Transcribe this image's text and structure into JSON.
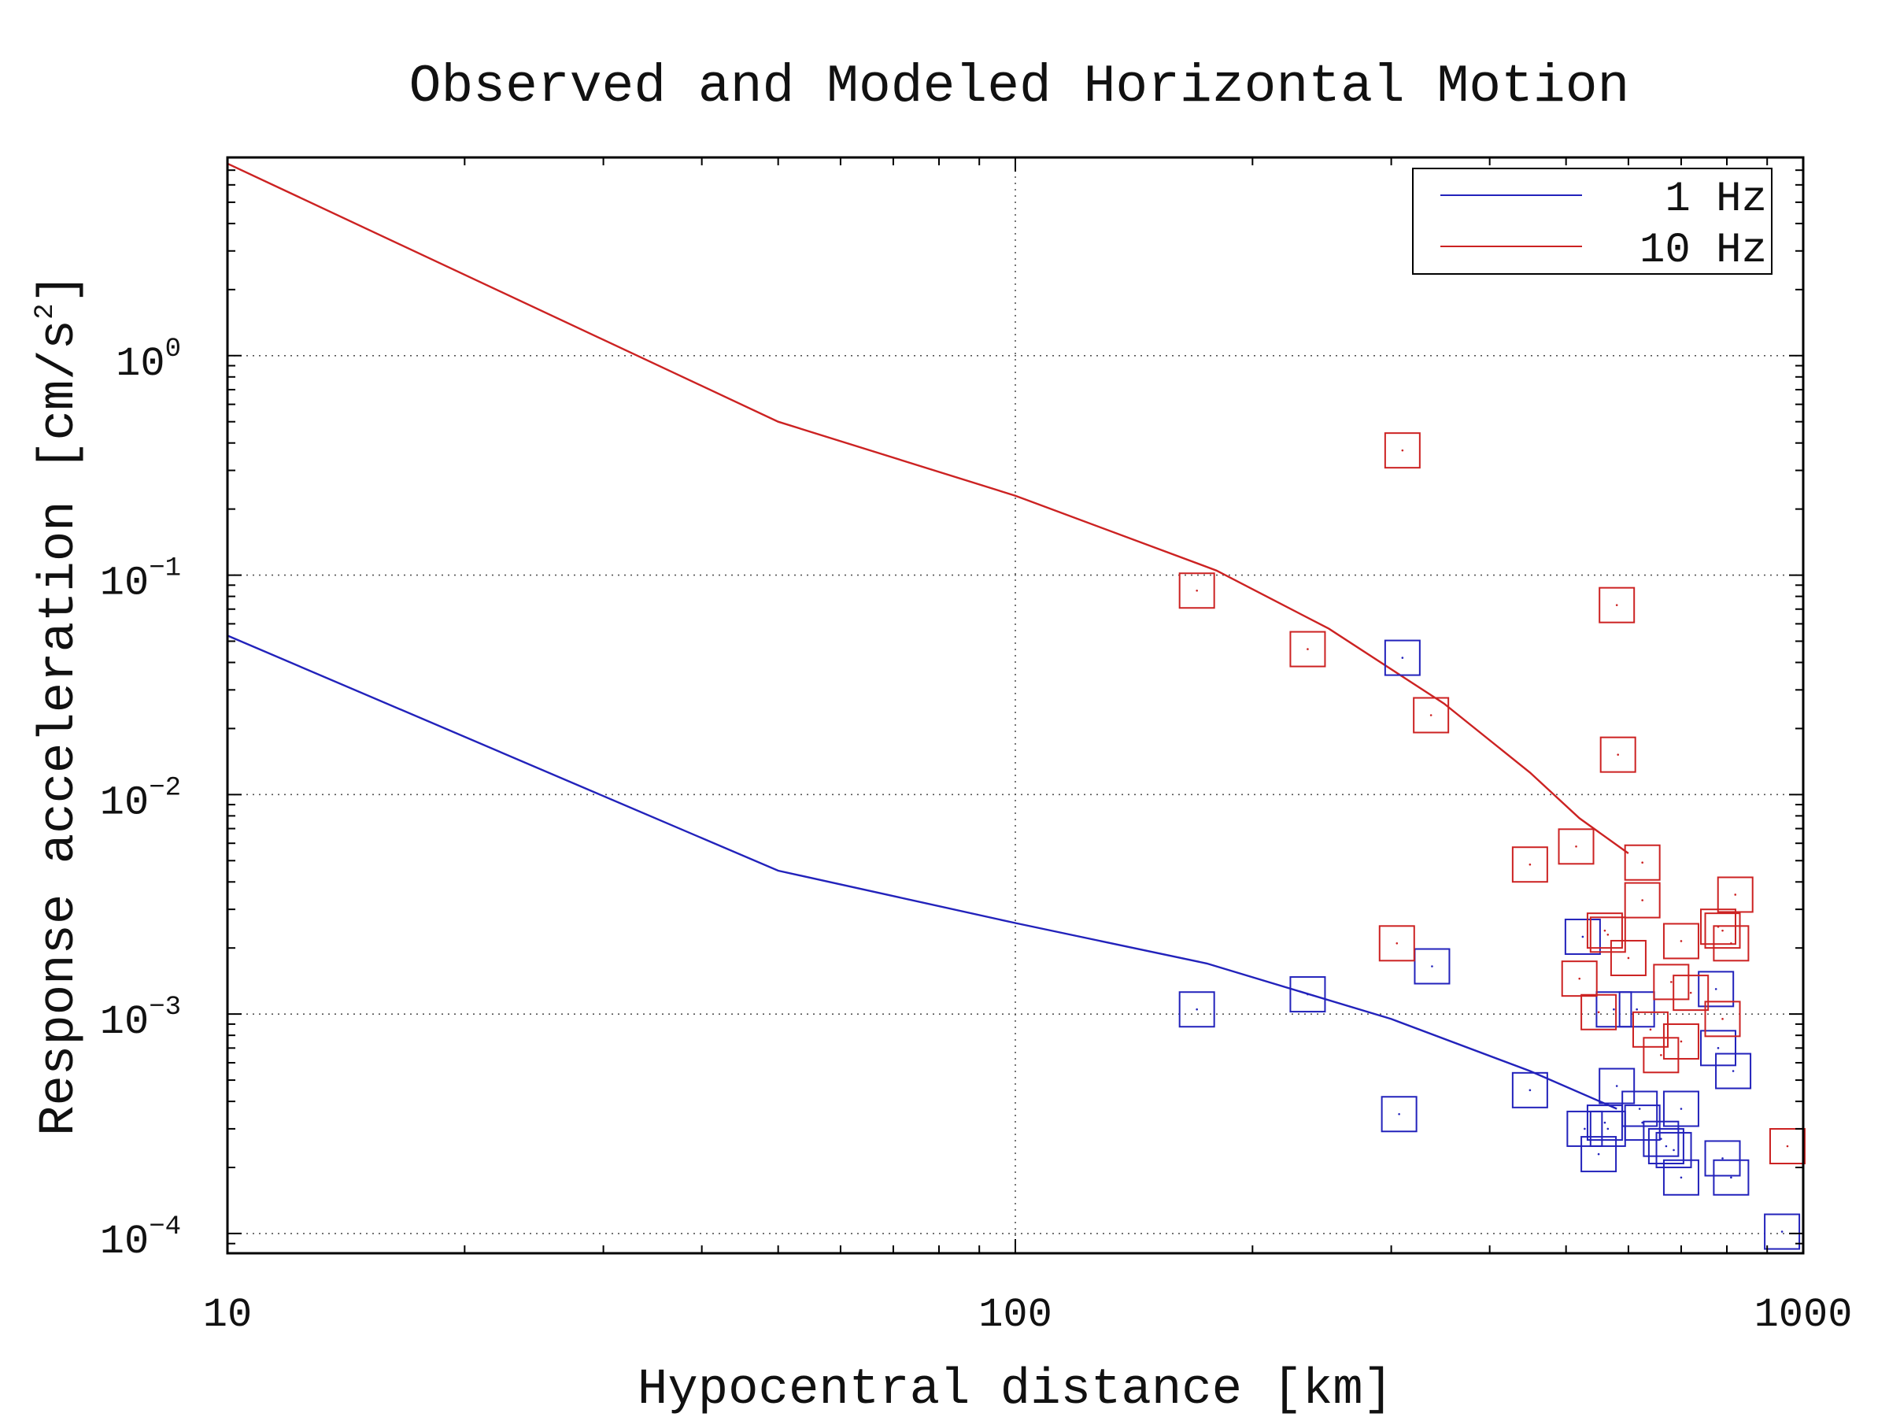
{
  "chart_data": {
    "type": "scatter",
    "title": "Observed and Modeled Horizontal Motion",
    "xlabel": "Hypocentral distance [km]",
    "ylabel": "Response acceleration [cm/s",
    "ylabel_superscript": "2",
    "ylabel_suffix": "]",
    "xscale": "log",
    "yscale": "log",
    "xlim": [
      10,
      1000
    ],
    "ylim": [
      8.13e-05,
      8.0
    ],
    "x_ticks": [
      {
        "value": 10,
        "label": "10"
      },
      {
        "value": 100,
        "label": "100"
      },
      {
        "value": 1000,
        "label": "1000"
      }
    ],
    "y_ticks": [
      {
        "value": 1,
        "base": "10",
        "exp": "0"
      },
      {
        "value": 0.1,
        "base": "10",
        "exp": "−1"
      },
      {
        "value": 0.01,
        "base": "10",
        "exp": "−2"
      },
      {
        "value": 0.001,
        "base": "10",
        "exp": "−3"
      },
      {
        "value": 0.0001,
        "base": "10",
        "exp": "−4"
      }
    ],
    "grid": "dotted, major ticks",
    "legend_position": "top-right",
    "series": [
      {
        "name": "1 Hz",
        "color": "#2222bb",
        "line": {
          "x": [
            10,
            50,
            100,
            175,
            300,
            450,
            580
          ],
          "y": [
            0.053,
            0.0045,
            0.0026,
            0.0017,
            0.00095,
            0.00055,
            0.00037
          ]
        },
        "points": [
          {
            "x": 170,
            "y": 0.00105
          },
          {
            "x": 235,
            "y": 0.00123
          },
          {
            "x": 310,
            "y": 0.042
          },
          {
            "x": 307,
            "y": 0.00035
          },
          {
            "x": 338,
            "y": 0.00165
          },
          {
            "x": 450,
            "y": 0.00045
          },
          {
            "x": 525,
            "y": 0.00225
          },
          {
            "x": 528,
            "y": 0.0003
          },
          {
            "x": 550,
            "y": 0.00023
          },
          {
            "x": 560,
            "y": 0.00032
          },
          {
            "x": 565,
            "y": 0.0003
          },
          {
            "x": 580,
            "y": 0.00047
          },
          {
            "x": 575,
            "y": 0.00105
          },
          {
            "x": 615,
            "y": 0.00105
          },
          {
            "x": 620,
            "y": 0.00037
          },
          {
            "x": 625,
            "y": 0.00032
          },
          {
            "x": 660,
            "y": 0.00027
          },
          {
            "x": 670,
            "y": 0.00025
          },
          {
            "x": 685,
            "y": 0.00024
          },
          {
            "x": 700,
            "y": 0.00018
          },
          {
            "x": 700,
            "y": 0.00037
          },
          {
            "x": 775,
            "y": 0.0013
          },
          {
            "x": 780,
            "y": 0.0007
          },
          {
            "x": 790,
            "y": 0.00022
          },
          {
            "x": 810,
            "y": 0.00018
          },
          {
            "x": 815,
            "y": 0.00055
          },
          {
            "x": 940,
            "y": 0.000102
          }
        ]
      },
      {
        "name": "10 Hz",
        "color": "#cc2222",
        "line": {
          "x": [
            10,
            50,
            100,
            180,
            250,
            350,
            450,
            520,
            600
          ],
          "y": [
            7.5,
            0.5,
            0.23,
            0.105,
            0.057,
            0.026,
            0.0126,
            0.0078,
            0.0054
          ]
        },
        "points": [
          {
            "x": 170,
            "y": 0.085
          },
          {
            "x": 235,
            "y": 0.046
          },
          {
            "x": 310,
            "y": 0.37
          },
          {
            "x": 337,
            "y": 0.023
          },
          {
            "x": 305,
            "y": 0.0021
          },
          {
            "x": 450,
            "y": 0.0048
          },
          {
            "x": 515,
            "y": 0.0058
          },
          {
            "x": 580,
            "y": 0.073
          },
          {
            "x": 582,
            "y": 0.0152
          },
          {
            "x": 625,
            "y": 0.0049
          },
          {
            "x": 625,
            "y": 0.0033
          },
          {
            "x": 560,
            "y": 0.0024
          },
          {
            "x": 565,
            "y": 0.0023
          },
          {
            "x": 600,
            "y": 0.0018
          },
          {
            "x": 520,
            "y": 0.00145
          },
          {
            "x": 550,
            "y": 0.00102
          },
          {
            "x": 640,
            "y": 0.00085
          },
          {
            "x": 660,
            "y": 0.00065
          },
          {
            "x": 680,
            "y": 0.0014
          },
          {
            "x": 700,
            "y": 0.00215
          },
          {
            "x": 720,
            "y": 0.00125
          },
          {
            "x": 700,
            "y": 0.00075
          },
          {
            "x": 780,
            "y": 0.0025
          },
          {
            "x": 790,
            "y": 0.0024
          },
          {
            "x": 810,
            "y": 0.0021
          },
          {
            "x": 820,
            "y": 0.0035
          },
          {
            "x": 790,
            "y": 0.00095
          },
          {
            "x": 955,
            "y": 0.00025
          }
        ]
      }
    ]
  }
}
